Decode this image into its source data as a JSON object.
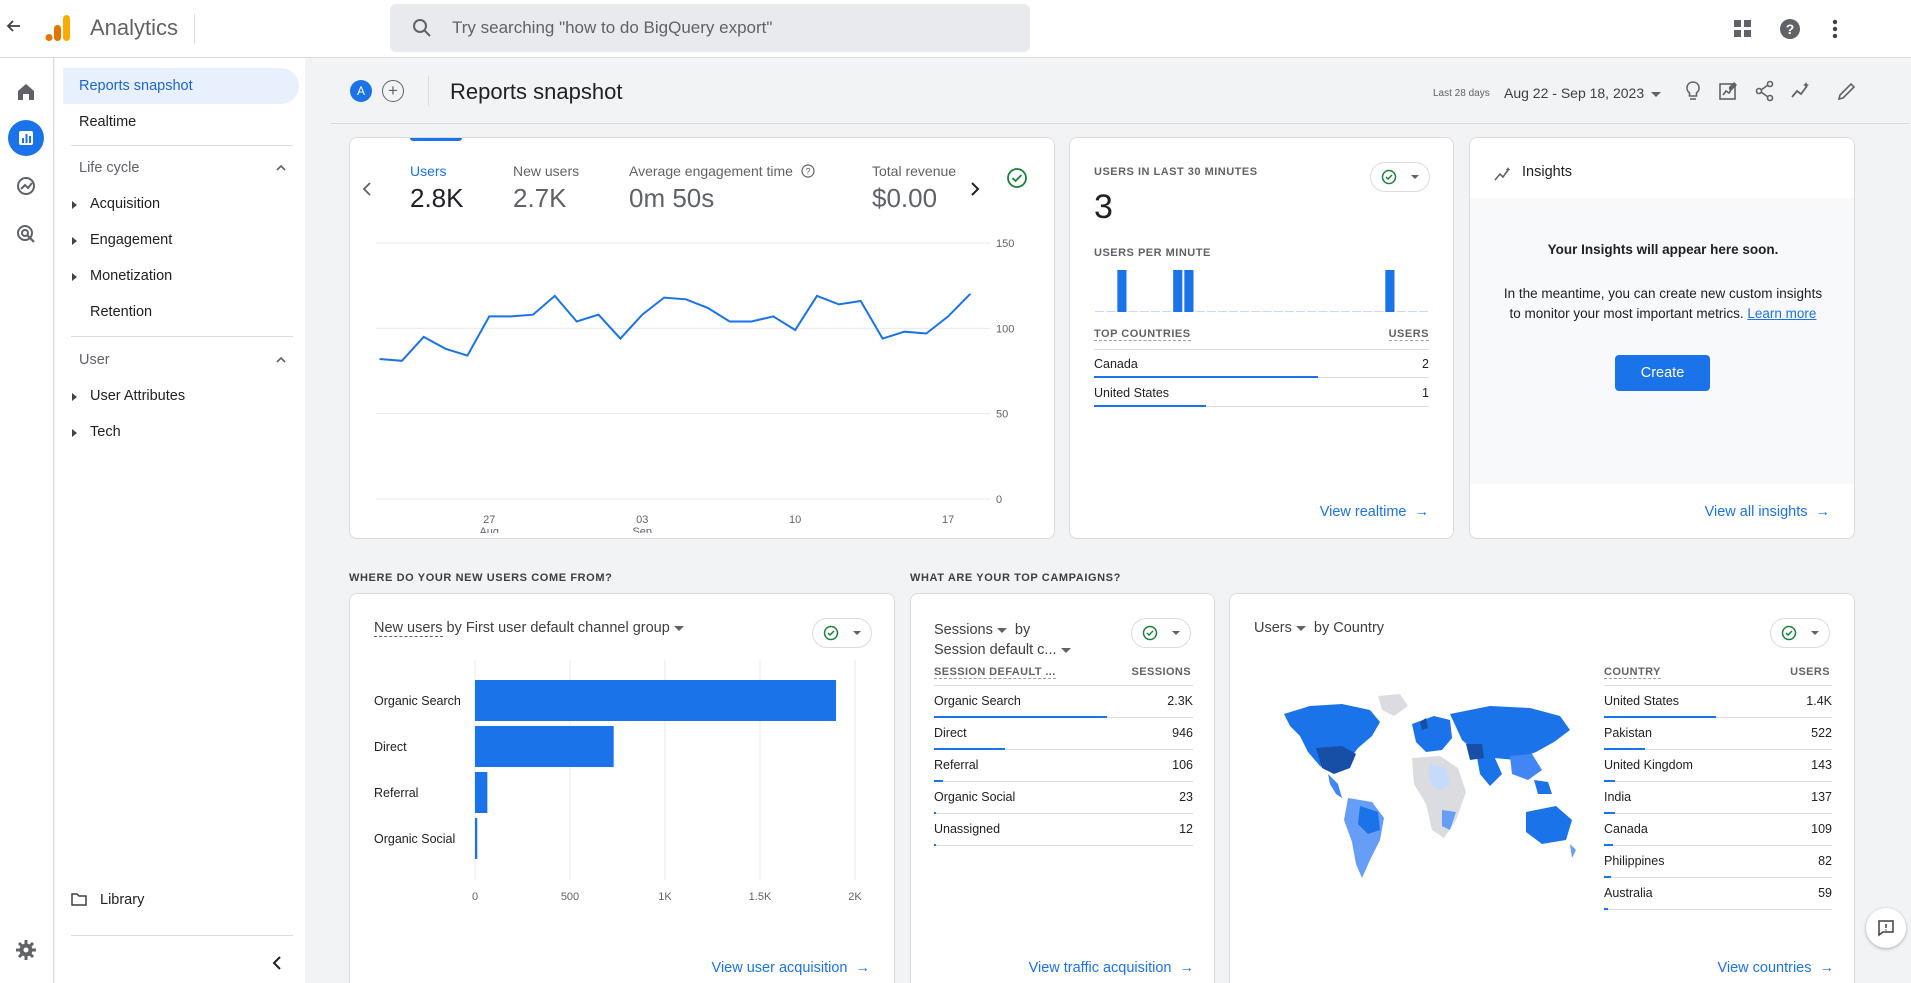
{
  "app": {
    "title": "Analytics"
  },
  "search": {
    "placeholder": "Try searching \"how to do BigQuery export\""
  },
  "nav": {
    "reports_snapshot": "Reports snapshot",
    "realtime": "Realtime",
    "lifecycle": "Life cycle",
    "acquisition": "Acquisition",
    "engagement": "Engagement",
    "monetization": "Monetization",
    "retention": "Retention",
    "user": "User",
    "user_attributes": "User Attributes",
    "tech": "Tech",
    "library": "Library"
  },
  "header": {
    "avatar": "A",
    "title": "Reports snapshot",
    "date_label": "Last 28 days",
    "date_range": "Aug 22 - Sep 18, 2023"
  },
  "metrics": {
    "users_label": "Users",
    "users_value": "2.8K",
    "new_users_label": "New users",
    "new_users_value": "2.7K",
    "engagement_label": "Average engagement time",
    "engagement_value": "0m 50s",
    "revenue_label": "Total revenue",
    "revenue_value": "$0.00"
  },
  "line_chart": {
    "type": "line",
    "y_ticks": [
      "150",
      "100",
      "50",
      "0"
    ],
    "x_ticks": [
      {
        "day": "27",
        "month": "Aug"
      },
      {
        "day": "03",
        "month": "Sep"
      },
      {
        "day": "10",
        "month": ""
      },
      {
        "day": "17",
        "month": ""
      }
    ],
    "ylim": [
      0,
      150
    ],
    "values": [
      82,
      81,
      95,
      88,
      84,
      107,
      107,
      108,
      119,
      104,
      108,
      94,
      108,
      118,
      117,
      112,
      104,
      104,
      107,
      99,
      119,
      114,
      116,
      94,
      98,
      97,
      107,
      120
    ]
  },
  "realtime": {
    "title": "USERS IN LAST 30 MINUTES",
    "value": "3",
    "per_minute_label": "USERS PER MINUTE",
    "per_minute": [
      0,
      0,
      1,
      0,
      0,
      0,
      0,
      1,
      1,
      0,
      0,
      0,
      0,
      0,
      0,
      0,
      0,
      0,
      0,
      0,
      0,
      0,
      0,
      0,
      0,
      0,
      1,
      0,
      0,
      0
    ],
    "countries_label": "TOP COUNTRIES",
    "users_label": "USERS",
    "rows": [
      {
        "name": "Canada",
        "value": "2",
        "share": 1.0
      },
      {
        "name": "United States",
        "value": "1",
        "share": 0.5
      }
    ],
    "link": "View realtime"
  },
  "insights": {
    "title": "Insights",
    "headline": "Your Insights will appear here soon.",
    "body1": "In the meantime, you can create new custom insights",
    "body2": "to monitor your most important metrics.",
    "learn_more": "Learn more",
    "create": "Create",
    "link": "View all insights"
  },
  "acquisition": {
    "section": "WHERE DO YOUR NEW USERS COME FROM?",
    "metric": "New users",
    "rest_title": "by First user default channel group",
    "link": "View user acquisition",
    "chart_data": {
      "type": "bar",
      "orientation": "horizontal",
      "categories": [
        "Organic Search",
        "Direct",
        "Referral",
        "Organic Social"
      ],
      "values": [
        1900,
        730,
        65,
        12
      ],
      "x_ticks": [
        "0",
        "500",
        "1K",
        "1.5K",
        "2K"
      ],
      "xlim": [
        0,
        2000
      ]
    }
  },
  "campaigns": {
    "section": "WHAT ARE YOUR TOP CAMPAIGNS?",
    "metric": "Sessions",
    "by": "by",
    "dimension": "Session default c...",
    "col1": "SESSION DEFAULT ...",
    "col2": "SESSIONS",
    "rows": [
      {
        "name": "Organic Search",
        "value": "2.3K",
        "share": 1.0
      },
      {
        "name": "Direct",
        "value": "946",
        "share": 0.41
      },
      {
        "name": "Referral",
        "value": "106",
        "share": 0.05
      },
      {
        "name": "Organic Social",
        "value": "23",
        "share": 0.012
      },
      {
        "name": "Unassigned",
        "value": "12",
        "share": 0.006
      }
    ],
    "link": "View traffic acquisition"
  },
  "countries": {
    "metric": "Users",
    "rest_title": "by Country",
    "col1": "COUNTRY",
    "col2": "USERS",
    "rows": [
      {
        "name": "United States",
        "value": "1.4K",
        "share": 1.0
      },
      {
        "name": "Pakistan",
        "value": "522",
        "share": 0.37
      },
      {
        "name": "United Kingdom",
        "value": "143",
        "share": 0.1
      },
      {
        "name": "India",
        "value": "137",
        "share": 0.1
      },
      {
        "name": "Canada",
        "value": "109",
        "share": 0.08
      },
      {
        "name": "Philippines",
        "value": "82",
        "share": 0.06
      },
      {
        "name": "Australia",
        "value": "59",
        "share": 0.04
      }
    ],
    "link": "View countries"
  },
  "colors": {
    "accent": "#1a73e8",
    "check": "#188038"
  }
}
